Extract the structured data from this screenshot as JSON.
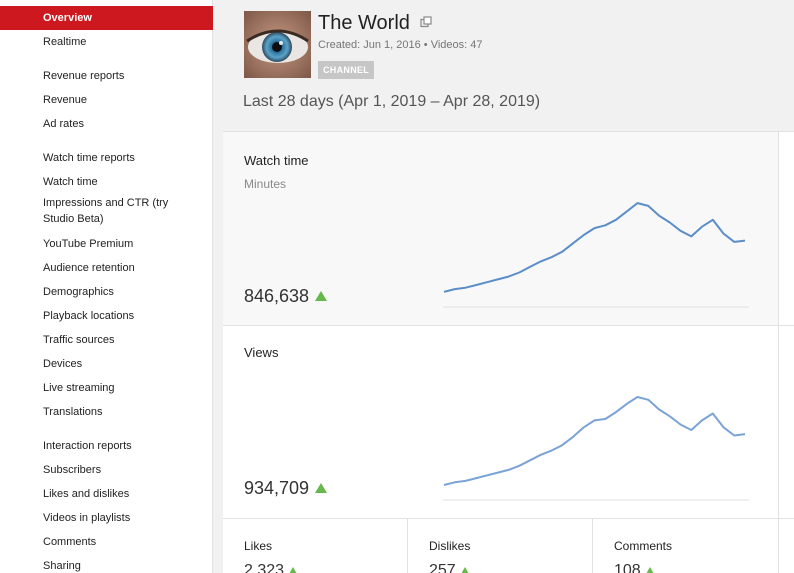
{
  "sidebar": {
    "items": [
      {
        "label": "Overview",
        "active": true
      },
      {
        "label": "Realtime"
      }
    ],
    "sections": [
      {
        "heading": "Revenue reports",
        "items": [
          {
            "label": "Revenue"
          },
          {
            "label": "Ad rates"
          }
        ]
      },
      {
        "heading": "Watch time reports",
        "items": [
          {
            "label": "Watch time"
          },
          {
            "label": "Impressions and CTR (try"
          },
          {
            "label": "Studio Beta)"
          },
          {
            "label": "YouTube Premium"
          },
          {
            "label": "Audience retention"
          },
          {
            "label": "Demographics"
          },
          {
            "label": "Playback locations"
          },
          {
            "label": "Traffic sources"
          },
          {
            "label": "Devices"
          },
          {
            "label": "Live streaming"
          },
          {
            "label": "Translations"
          }
        ]
      },
      {
        "heading": "Interaction reports",
        "items": [
          {
            "label": "Subscribers"
          },
          {
            "label": "Likes and dislikes"
          },
          {
            "label": "Videos in playlists"
          },
          {
            "label": "Comments"
          },
          {
            "label": "Sharing"
          }
        ]
      }
    ]
  },
  "channel": {
    "title": "The World",
    "meta": "Created: Jun 1, 2016  •  Videos: 47",
    "badge": "CHANNEL",
    "thumbnail_icon": "eye-closeup-thumbnail",
    "external_icon": "external-link-icon"
  },
  "date_range": "Last 28 days (Apr 1, 2019 – Apr 28, 2019)",
  "cards": {
    "watch_time": {
      "title": "Watch time",
      "subtitle": "Minutes",
      "value": "846,638",
      "trend": "up"
    },
    "views": {
      "title": "Views",
      "value": "934,709",
      "trend": "up"
    }
  },
  "stats": [
    {
      "label": "Likes",
      "value": "2,323",
      "trend": "up"
    },
    {
      "label": "Dislikes",
      "value": "257",
      "trend": "up"
    },
    {
      "label": "Comments",
      "value": "108",
      "trend": "up"
    }
  ],
  "chart_data": [
    {
      "type": "line",
      "series": [
        {
          "values": [
            8,
            10,
            11,
            13,
            15,
            17,
            19,
            22,
            26,
            30,
            33,
            37,
            43,
            49,
            54,
            56,
            60,
            66,
            72,
            70,
            63,
            58,
            52,
            48,
            55,
            60,
            50,
            44,
            45
          ]
        }
      ],
      "color": "#5b8ec9",
      "grid": false
    },
    {
      "type": "line",
      "series": [
        {
          "values": [
            8,
            10,
            11,
            13,
            15,
            17,
            19,
            22,
            26,
            30,
            33,
            37,
            43,
            50,
            55,
            56,
            61,
            67,
            72,
            70,
            63,
            58,
            52,
            48,
            55,
            60,
            50,
            44,
            45
          ]
        }
      ],
      "color": "#7aa3d6",
      "grid": false
    }
  ],
  "colors": {
    "accent": "#cc181e",
    "trend_up": "#67b84a"
  }
}
